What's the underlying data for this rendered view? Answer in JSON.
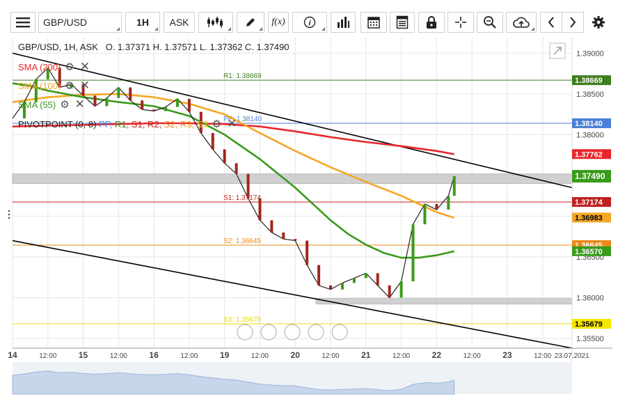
{
  "toolbar": {
    "symbol": "GBP/USD",
    "timeframe": "1H",
    "price_side": "ASK",
    "buttons": [
      "menu-icon",
      "candles-icon",
      "pencil-icon",
      "function-icon",
      "info-icon",
      "bars-icon",
      "calendar-icon",
      "table-icon",
      "lock-icon",
      "crosshair-icon",
      "zoom-icon",
      "cloud-upload-icon",
      "arrow-left-icon",
      "arrow-right-icon",
      "gear-icon"
    ],
    "function_glyph": "f(x)"
  },
  "header": {
    "ohlc": "GBP/USD, 1H, ASK   O. 1.37371 H. 1.37571 L. 1.37362 C. 1.37490"
  },
  "legend": [
    {
      "label": "SMA (200)",
      "color": "#e8262a"
    },
    {
      "label": "SMA (100)",
      "color": "#f5a623"
    },
    {
      "label": "SMA (55)",
      "color": "#3a9a1a"
    }
  ],
  "pivot_legend": {
    "name": "PIVOTPOINT (0, 8)",
    "items": [
      {
        "label": "PP,",
        "color": "#4a80d6"
      },
      {
        "label": "R1,",
        "color": "#3f7d1f"
      },
      {
        "label": "S1,",
        "color": "#c02020"
      },
      {
        "label": "R2,",
        "color": "#c02020"
      },
      {
        "label": "S2,",
        "color": "#e88a1a"
      },
      {
        "label": "R3,",
        "color": "#e8a21a"
      },
      {
        "label": "S3",
        "color": "#e8c81a"
      }
    ]
  },
  "colors": {
    "up": "#3a9a1a",
    "down": "#a0281e",
    "grid": "#e6e6e6",
    "trend": "#000000",
    "zone": "#c8c8c8"
  },
  "chart_data": {
    "type": "line",
    "title": "GBP/USD, 1H, ASK",
    "y_ticks": [
      "1.39000",
      "1.38500",
      "1.38000",
      "1.37500",
      "1.37000",
      "1.36500",
      "1.36000",
      "1.35500"
    ],
    "ylim": [
      1.3538,
      1.392
    ],
    "x_ticks": [
      {
        "label": "14",
        "pos": 0
      },
      {
        "label": "12:00",
        "pos": 12
      },
      {
        "label": "15",
        "pos": 24
      },
      {
        "label": "12:00",
        "pos": 36
      },
      {
        "label": "16",
        "pos": 48
      },
      {
        "label": "12:00",
        "pos": 60
      },
      {
        "label": "19",
        "pos": 72
      },
      {
        "label": "12:00",
        "pos": 84
      },
      {
        "label": "20",
        "pos": 96
      },
      {
        "label": "12:00",
        "pos": 108
      },
      {
        "label": "21",
        "pos": 120
      },
      {
        "label": "12:00",
        "pos": 132
      },
      {
        "label": "22",
        "pos": 144
      },
      {
        "label": "12:00",
        "pos": 156
      },
      {
        "label": "23",
        "pos": 168
      },
      {
        "label": "12:00",
        "pos": 180
      },
      {
        "label": "23.07.2021",
        "pos": 184
      }
    ],
    "xlim": [
      0,
      190
    ],
    "pivots": [
      {
        "label": "R1: 1.38669",
        "value": 1.38669,
        "tag": "1.38669",
        "color": "#3f7d1f"
      },
      {
        "label": "PP: 1.38140",
        "value": 1.3814,
        "tag": "1.38140",
        "color": "#4a80d6"
      },
      {
        "label": "S1: 1.37174",
        "value": 1.37174,
        "tag": "1.37174",
        "color": "#c02020"
      },
      {
        "label": "S2: 1.36645",
        "value": 1.36645,
        "tag": "1.36645",
        "color": "#e88a1a"
      },
      {
        "label": "S3: 1.35679",
        "value": 1.35679,
        "tag": "1.35679",
        "color": "#e8d81a"
      }
    ],
    "price_tags": [
      {
        "text": "1.37762",
        "value": 1.37762,
        "color": "#e8262a"
      },
      {
        "text": "1.37490",
        "value": 1.3749,
        "color": "#3a9a1a"
      },
      {
        "text": "1.36983",
        "value": 1.36983,
        "color": "#f5a623"
      },
      {
        "text": "1.36570",
        "value": 1.3657,
        "color": "#3a9a1a"
      }
    ],
    "zones": [
      {
        "x0": 0,
        "x1": 190,
        "y0": 1.374,
        "y1": 1.3752
      },
      {
        "x0": 103,
        "x1": 190,
        "y0": 1.3592,
        "y1": 1.3599
      }
    ],
    "trendlines": [
      {
        "x": [
          0,
          190
        ],
        "y": [
          1.39,
          1.3735
        ]
      },
      {
        "x": [
          0,
          190
        ],
        "y": [
          1.367,
          1.3538
        ]
      }
    ],
    "series": [
      {
        "name": "SMA (200)",
        "color": "#e8262a",
        "x": [
          0,
          12,
          24,
          36,
          48,
          60,
          72,
          84,
          96,
          108,
          120,
          132,
          144,
          150
        ],
        "y": [
          1.381,
          1.3811,
          1.3812,
          1.3813,
          1.3814,
          1.3814,
          1.3813,
          1.381,
          1.3804,
          1.3797,
          1.3791,
          1.3786,
          1.378,
          1.3776
        ]
      },
      {
        "name": "SMA (100)",
        "color": "#f5a623",
        "x": [
          0,
          12,
          24,
          36,
          48,
          60,
          72,
          84,
          96,
          108,
          120,
          132,
          144,
          150
        ],
        "y": [
          1.384,
          1.3846,
          1.3849,
          1.385,
          1.3846,
          1.3838,
          1.3825,
          1.3802,
          1.378,
          1.376,
          1.3742,
          1.3725,
          1.3705,
          1.3698
        ]
      },
      {
        "name": "SMA (55)",
        "color": "#3a9a1a",
        "x": [
          0,
          6,
          12,
          24,
          36,
          48,
          60,
          72,
          84,
          96,
          102,
          108,
          114,
          120,
          126,
          132,
          138,
          144,
          150
        ],
        "y": [
          1.3863,
          1.386,
          1.3854,
          1.3846,
          1.384,
          1.3835,
          1.3823,
          1.38,
          1.377,
          1.3735,
          1.3715,
          1.3695,
          1.3678,
          1.3665,
          1.3655,
          1.3649,
          1.3649,
          1.3652,
          1.3657
        ]
      },
      {
        "name": "",
        "color": "#222222",
        "x": [
          0,
          4,
          8,
          12,
          16,
          20,
          24,
          28,
          32,
          36,
          40,
          44,
          48,
          52,
          56,
          60,
          64,
          68,
          72,
          76,
          80,
          84,
          88,
          92,
          96,
          100,
          104,
          108,
          112,
          116,
          120,
          124,
          128,
          132,
          136,
          140,
          144,
          148,
          150
        ],
        "y": [
          1.382,
          1.384,
          1.3868,
          1.3882,
          1.3858,
          1.3862,
          1.3848,
          1.3835,
          1.3845,
          1.3858,
          1.3842,
          1.3831,
          1.3829,
          1.3834,
          1.3844,
          1.3828,
          1.3802,
          1.3782,
          1.3765,
          1.3752,
          1.3722,
          1.3695,
          1.368,
          1.3672,
          1.367,
          1.364,
          1.3615,
          1.361,
          1.3618,
          1.3624,
          1.363,
          1.3615,
          1.36,
          1.362,
          1.369,
          1.3715,
          1.3708,
          1.3725,
          1.3749
        ]
      }
    ]
  },
  "navigator": {
    "buttons": [
      "prev-icon",
      "zoom-out-icon",
      "reset-icon",
      "zoom-in-icon",
      "next-icon"
    ]
  }
}
